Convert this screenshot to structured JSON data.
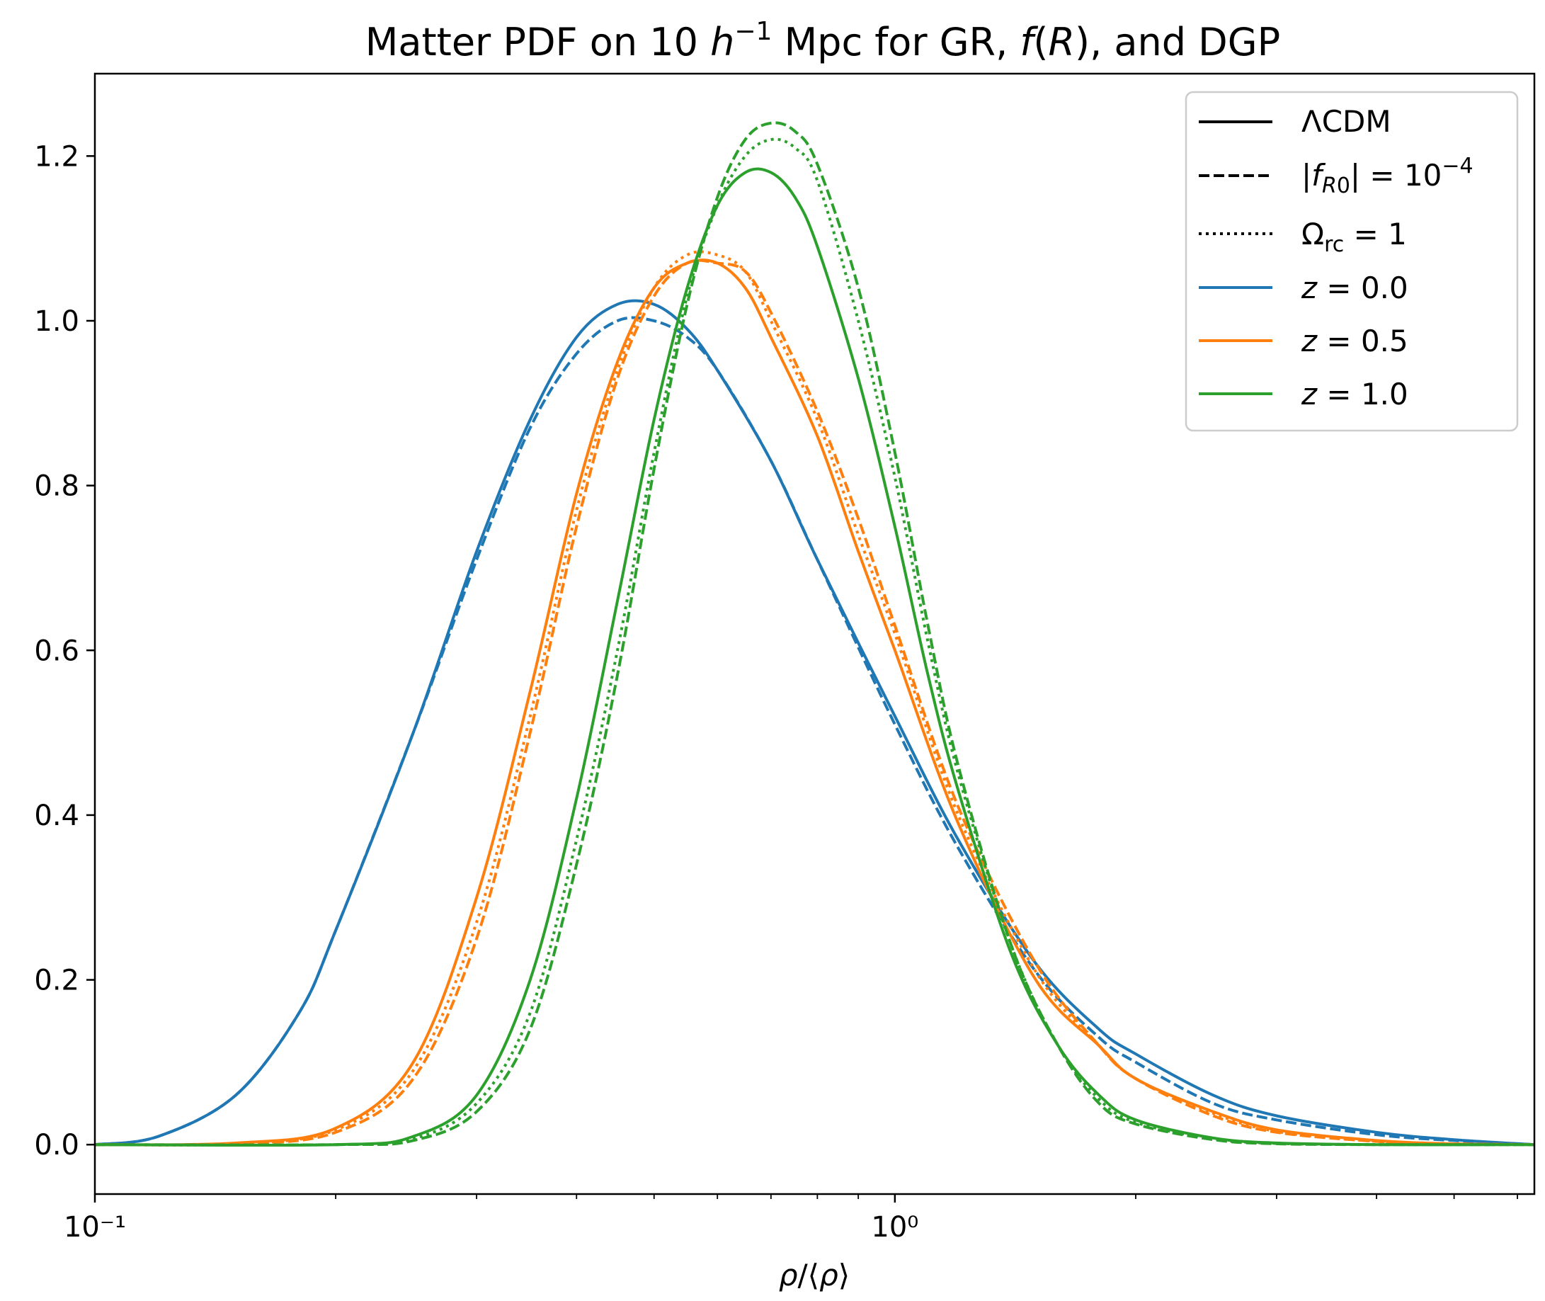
{
  "chart_data": {
    "type": "line",
    "title": "Matter PDF on 10 h⁻¹ Mpc for GR, f(R), and DGP",
    "xlabel": "ρ/⟨ρ⟩",
    "ylabel": "",
    "xscale": "log",
    "xlim": [
      0.1,
      6.3
    ],
    "ylim": [
      -0.06,
      1.3
    ],
    "xticks": [
      {
        "value": 0.1,
        "label": "10⁻¹"
      },
      {
        "value": 1.0,
        "label": "10⁰"
      }
    ],
    "yticks": [
      {
        "value": 0.0,
        "label": "0.0"
      },
      {
        "value": 0.2,
        "label": "0.2"
      },
      {
        "value": 0.4,
        "label": "0.4"
      },
      {
        "value": 0.6,
        "label": "0.6"
      },
      {
        "value": 0.8,
        "label": "0.8"
      },
      {
        "value": 1.0,
        "label": "1.0"
      },
      {
        "value": 1.2,
        "label": "1.2"
      }
    ],
    "legend": {
      "position": "top-right",
      "entries": [
        {
          "label": "ΛCDM",
          "style": "solid",
          "color": "#000000"
        },
        {
          "label": "|f_R0| = 10⁻⁴",
          "style": "dashed",
          "color": "#000000"
        },
        {
          "label": "Ω_rc = 1",
          "style": "dotted",
          "color": "#000000"
        },
        {
          "label": "z = 0.0",
          "style": "solid",
          "color": "#1f77b4"
        },
        {
          "label": "z = 0.5",
          "style": "solid",
          "color": "#ff7f0e"
        },
        {
          "label": "z = 1.0",
          "style": "solid",
          "color": "#2ca02c"
        }
      ]
    },
    "series": [
      {
        "name": "z=0.0 LCDM",
        "color": "#1f77b4",
        "style": "solid",
        "x": [
          0.1,
          0.12,
          0.15,
          0.18,
          0.2,
          0.25,
          0.3,
          0.35,
          0.4,
          0.45,
          0.5,
          0.55,
          0.6,
          0.7,
          0.8,
          1.0,
          1.2,
          1.5,
          1.8,
          2.0,
          2.5,
          3.0,
          4.0,
          5.0,
          6.3
        ],
        "y": [
          0.0,
          0.01,
          0.06,
          0.16,
          0.26,
          0.5,
          0.72,
          0.88,
          0.98,
          1.02,
          1.02,
          0.99,
          0.94,
          0.83,
          0.71,
          0.52,
          0.37,
          0.22,
          0.14,
          0.11,
          0.06,
          0.035,
          0.015,
          0.006,
          0.0
        ]
      },
      {
        "name": "z=0.0 f(R)",
        "color": "#1f77b4",
        "style": "dashed",
        "x": [
          0.1,
          0.12,
          0.15,
          0.18,
          0.2,
          0.25,
          0.3,
          0.35,
          0.4,
          0.45,
          0.5,
          0.55,
          0.6,
          0.7,
          0.8,
          1.0,
          1.2,
          1.5,
          1.8,
          2.0,
          2.5,
          3.0,
          4.0,
          5.0,
          6.3
        ],
        "y": [
          0.0,
          0.01,
          0.06,
          0.16,
          0.26,
          0.5,
          0.71,
          0.87,
          0.96,
          1.0,
          1.0,
          0.98,
          0.94,
          0.83,
          0.71,
          0.51,
          0.36,
          0.21,
          0.13,
          0.1,
          0.05,
          0.03,
          0.012,
          0.005,
          0.0
        ]
      },
      {
        "name": "z=0.5 LCDM",
        "color": "#ff7f0e",
        "style": "solid",
        "x": [
          0.1,
          0.15,
          0.2,
          0.25,
          0.3,
          0.35,
          0.4,
          0.45,
          0.5,
          0.55,
          0.6,
          0.65,
          0.7,
          0.8,
          0.9,
          1.0,
          1.2,
          1.5,
          1.8,
          2.0,
          2.5,
          3.0,
          4.0,
          5.0,
          6.3
        ],
        "y": [
          0.0,
          0.002,
          0.02,
          0.1,
          0.3,
          0.55,
          0.79,
          0.95,
          1.04,
          1.07,
          1.07,
          1.04,
          0.98,
          0.86,
          0.72,
          0.6,
          0.39,
          0.2,
          0.12,
          0.08,
          0.04,
          0.018,
          0.005,
          0.001,
          0.0
        ]
      },
      {
        "name": "z=0.5 f(R)",
        "color": "#ff7f0e",
        "style": "dashed",
        "x": [
          0.1,
          0.15,
          0.2,
          0.25,
          0.3,
          0.35,
          0.4,
          0.45,
          0.5,
          0.55,
          0.6,
          0.65,
          0.7,
          0.8,
          0.9,
          1.0,
          1.2,
          1.5,
          1.8,
          2.0,
          2.5,
          3.0,
          4.0,
          5.0,
          6.3
        ],
        "y": [
          0.0,
          0.001,
          0.015,
          0.08,
          0.25,
          0.5,
          0.75,
          0.93,
          1.03,
          1.07,
          1.07,
          1.06,
          1.01,
          0.89,
          0.76,
          0.63,
          0.41,
          0.22,
          0.12,
          0.08,
          0.035,
          0.015,
          0.004,
          0.001,
          0.0
        ]
      },
      {
        "name": "z=0.5 DGP",
        "color": "#ff7f0e",
        "style": "dotted",
        "x": [
          0.1,
          0.15,
          0.2,
          0.25,
          0.3,
          0.35,
          0.4,
          0.45,
          0.5,
          0.55,
          0.6,
          0.65,
          0.7,
          0.8,
          0.9,
          1.0,
          1.2,
          1.5,
          1.8,
          2.0,
          2.5,
          3.0,
          4.0,
          5.0,
          6.3
        ],
        "y": [
          0.0,
          0.001,
          0.018,
          0.09,
          0.27,
          0.52,
          0.77,
          0.94,
          1.04,
          1.08,
          1.08,
          1.06,
          1.0,
          0.88,
          0.74,
          0.62,
          0.4,
          0.21,
          0.12,
          0.08,
          0.038,
          0.016,
          0.004,
          0.001,
          0.0
        ]
      },
      {
        "name": "z=1.0 LCDM",
        "color": "#2ca02c",
        "style": "solid",
        "x": [
          0.1,
          0.2,
          0.25,
          0.3,
          0.35,
          0.4,
          0.45,
          0.5,
          0.55,
          0.6,
          0.65,
          0.7,
          0.75,
          0.8,
          0.9,
          1.0,
          1.1,
          1.2,
          1.4,
          1.6,
          1.8,
          2.0,
          2.5,
          3.0,
          4.0,
          6.3
        ],
        "y": [
          0.0,
          0.0,
          0.01,
          0.06,
          0.2,
          0.42,
          0.66,
          0.88,
          1.04,
          1.14,
          1.18,
          1.18,
          1.15,
          1.09,
          0.93,
          0.75,
          0.57,
          0.43,
          0.23,
          0.12,
          0.06,
          0.03,
          0.008,
          0.002,
          0.0,
          0.0
        ]
      },
      {
        "name": "z=1.0 f(R)",
        "color": "#2ca02c",
        "style": "dashed",
        "x": [
          0.1,
          0.2,
          0.25,
          0.3,
          0.35,
          0.4,
          0.45,
          0.5,
          0.55,
          0.6,
          0.65,
          0.7,
          0.75,
          0.8,
          0.9,
          1.0,
          1.1,
          1.2,
          1.4,
          1.6,
          1.8,
          2.0,
          2.5,
          3.0,
          4.0,
          6.3
        ],
        "y": [
          0.0,
          0.0,
          0.005,
          0.04,
          0.14,
          0.34,
          0.57,
          0.82,
          1.02,
          1.15,
          1.22,
          1.24,
          1.23,
          1.19,
          1.04,
          0.84,
          0.63,
          0.46,
          0.24,
          0.12,
          0.05,
          0.025,
          0.006,
          0.001,
          0.0,
          0.0
        ]
      },
      {
        "name": "z=1.0 DGP",
        "color": "#2ca02c",
        "style": "dotted",
        "x": [
          0.1,
          0.2,
          0.25,
          0.3,
          0.35,
          0.4,
          0.45,
          0.5,
          0.55,
          0.6,
          0.65,
          0.7,
          0.75,
          0.8,
          0.9,
          1.0,
          1.1,
          1.2,
          1.4,
          1.6,
          1.8,
          2.0,
          2.5,
          3.0,
          4.0,
          6.3
        ],
        "y": [
          0.0,
          0.0,
          0.007,
          0.05,
          0.16,
          0.37,
          0.6,
          0.84,
          1.03,
          1.14,
          1.2,
          1.22,
          1.21,
          1.17,
          1.0,
          0.81,
          0.61,
          0.45,
          0.24,
          0.12,
          0.055,
          0.027,
          0.007,
          0.0015,
          0.0,
          0.0
        ]
      }
    ]
  }
}
